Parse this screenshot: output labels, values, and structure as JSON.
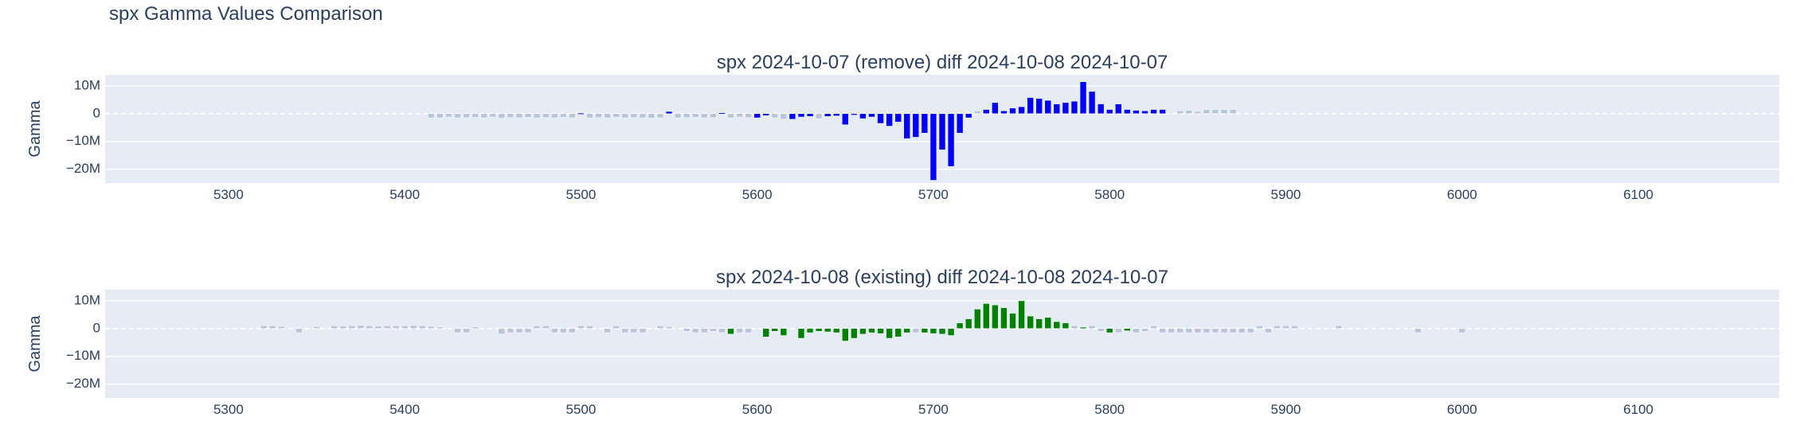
{
  "page": {
    "title": "spx Gamma Values Comparison"
  },
  "chart_data": [
    {
      "type": "bar",
      "title": "spx 2024-10-07 (remove) diff 2024-10-08 2024-10-07",
      "xlabel": "",
      "ylabel": "Gamma",
      "xlim": [
        5230,
        6180
      ],
      "ylim": [
        -25000000,
        14000000
      ],
      "x_ticks": [
        5300,
        5400,
        5500,
        5600,
        5700,
        5800,
        5900,
        6000,
        6100
      ],
      "y_ticks": [
        10000000,
        0,
        -10000000,
        -20000000
      ],
      "y_tick_labels": [
        "10M",
        "0",
        "−10M",
        "−20M"
      ],
      "grid": true,
      "colors": {
        "main": "#0000ff",
        "faint": "#b8c4d8",
        "plot_bg": "#e5ecf6"
      },
      "series": [
        {
          "color": "#0000ff",
          "x": [
            5500,
            5550,
            5580,
            5600,
            5605,
            5620,
            5625,
            5630,
            5640,
            5645,
            5650,
            5655,
            5660,
            5665,
            5670,
            5675,
            5680,
            5685,
            5690,
            5695,
            5700,
            5705,
            5710,
            5715,
            5720,
            5730,
            5735,
            5740,
            5745,
            5750,
            5755,
            5760,
            5765,
            5770,
            5775,
            5780,
            5785,
            5790,
            5795,
            5800,
            5805,
            5810,
            5815,
            5820,
            5825,
            5830
          ],
          "values": [
            200000,
            800000,
            300000,
            -1500000,
            -700000,
            -2000000,
            -1200000,
            -1000000,
            -1000000,
            -800000,
            -4000000,
            -500000,
            -1800000,
            -1200000,
            -3500000,
            -4500000,
            -3000000,
            -9000000,
            -8500000,
            -7000000,
            -24000000,
            -13000000,
            -19000000,
            -7000000,
            -1500000,
            1500000,
            4000000,
            1000000,
            2000000,
            2500000,
            5800000,
            5500000,
            4800000,
            3500000,
            4000000,
            4500000,
            11500000,
            8000000,
            3500000,
            1500000,
            3500000,
            1500000,
            1200000,
            1000000,
            1500000,
            1500000
          ]
        },
        {
          "color": "#b8c4d8",
          "x": [
            5415,
            5420,
            5425,
            5430,
            5435,
            5440,
            5445,
            5450,
            5455,
            5460,
            5465,
            5470,
            5475,
            5480,
            5485,
            5490,
            5495,
            5505,
            5510,
            5515,
            5520,
            5525,
            5530,
            5535,
            5540,
            5545,
            5555,
            5560,
            5565,
            5570,
            5575,
            5585,
            5590,
            5595,
            5610,
            5615,
            5635,
            5725,
            5840,
            5845,
            5850,
            5855,
            5860,
            5865,
            5870
          ],
          "values": [
            -1500000,
            -1500000,
            -1200000,
            -1500000,
            -1400000,
            -1300000,
            -1500000,
            -1200000,
            -1600000,
            -1400000,
            -1500000,
            -1300000,
            -1500000,
            -1400000,
            -1500000,
            -1300000,
            -1500000,
            -1500000,
            -1400000,
            -1500000,
            -1300000,
            -1500000,
            -1400000,
            -1500000,
            -1600000,
            -1500000,
            -1500000,
            -1400000,
            -1300000,
            -1500000,
            -1400000,
            -1500000,
            -1200000,
            -1400000,
            -1500000,
            -2000000,
            -1800000,
            1000000,
            1000000,
            1200000,
            800000,
            1500000,
            1500000,
            1500000,
            1500000
          ]
        }
      ]
    },
    {
      "type": "bar",
      "title": "spx 2024-10-08 (existing) diff 2024-10-08 2024-10-07",
      "xlabel": "",
      "ylabel": "Gamma",
      "xlim": [
        5230,
        6180
      ],
      "ylim": [
        -25000000,
        14000000
      ],
      "x_ticks": [
        5300,
        5400,
        5500,
        5600,
        5700,
        5800,
        5900,
        6000,
        6100
      ],
      "y_ticks": [
        10000000,
        0,
        -10000000,
        -20000000
      ],
      "y_tick_labels": [
        "10M",
        "0",
        "−10M",
        "−20M"
      ],
      "grid": true,
      "colors": {
        "main": "#008000",
        "faint": "#b8c4d8",
        "plot_bg": "#e5ecf6"
      },
      "series": [
        {
          "color": "#008000",
          "x": [
            5585,
            5605,
            5610,
            5615,
            5625,
            5630,
            5635,
            5640,
            5645,
            5650,
            5655,
            5660,
            5665,
            5670,
            5675,
            5680,
            5685,
            5695,
            5700,
            5705,
            5710,
            5715,
            5720,
            5725,
            5730,
            5735,
            5740,
            5745,
            5750,
            5755,
            5760,
            5765,
            5770,
            5775,
            5785,
            5800,
            5810
          ],
          "values": [
            -2000000,
            -3000000,
            -1000000,
            -2500000,
            -3500000,
            -1500000,
            -1000000,
            -1200000,
            -1500000,
            -4500000,
            -3500000,
            -2000000,
            -1500000,
            -1800000,
            -3500000,
            -3000000,
            -1500000,
            -1500000,
            -1800000,
            -2000000,
            -2500000,
            2000000,
            3500000,
            7000000,
            9000000,
            8500000,
            7500000,
            5500000,
            10000000,
            4500000,
            3500000,
            4000000,
            2500000,
            2000000,
            500000,
            -1500000,
            -800000
          ]
        },
        {
          "color": "#b8c4d8",
          "x": [
            5320,
            5325,
            5330,
            5340,
            5350,
            5360,
            5365,
            5370,
            5375,
            5380,
            5385,
            5390,
            5395,
            5400,
            5405,
            5410,
            5415,
            5420,
            5430,
            5435,
            5440,
            5455,
            5460,
            5465,
            5470,
            5475,
            5480,
            5485,
            5490,
            5495,
            5500,
            5505,
            5515,
            5520,
            5525,
            5530,
            5535,
            5545,
            5550,
            5560,
            5565,
            5570,
            5575,
            5580,
            5590,
            5595,
            5690,
            5780,
            5790,
            5795,
            5805,
            5815,
            5820,
            5825,
            5830,
            5835,
            5840,
            5845,
            5850,
            5855,
            5860,
            5865,
            5870,
            5875,
            5880,
            5885,
            5890,
            5895,
            5900,
            5905,
            5930,
            5975,
            6000
          ],
          "values": [
            1000000,
            1000000,
            800000,
            -1500000,
            700000,
            1000000,
            900000,
            1000000,
            1200000,
            1000000,
            900000,
            1000000,
            1000000,
            1000000,
            1100000,
            1000000,
            800000,
            600000,
            -1500000,
            -1500000,
            600000,
            -2000000,
            -1500000,
            -1500000,
            -1500000,
            1000000,
            1000000,
            -1500000,
            -1500000,
            -1500000,
            1000000,
            1000000,
            -1500000,
            1000000,
            -1500000,
            -1500000,
            -1500000,
            1000000,
            700000,
            -1000000,
            -1500000,
            -1500000,
            -1000000,
            -1500000,
            -1500000,
            -1500000,
            -1500000,
            1000000,
            1000000,
            -1000000,
            -1500000,
            -1500000,
            -1000000,
            1000000,
            -1500000,
            -1500000,
            -1500000,
            -1500000,
            -1500000,
            -1500000,
            -1500000,
            -1500000,
            -1500000,
            -1500000,
            -1500000,
            1000000,
            -1500000,
            1000000,
            1000000,
            1000000,
            1000000,
            -1500000,
            -1500000
          ]
        }
      ]
    }
  ]
}
